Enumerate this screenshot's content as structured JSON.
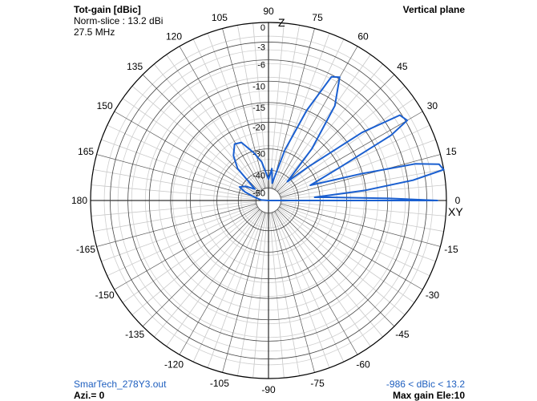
{
  "header": {
    "title": "Tot-gain [dBic]",
    "norm": "Norm-slice : 13.2 dBi",
    "freq": "27.5 MHz",
    "plane": "Vertical plane"
  },
  "footer": {
    "file": "SmarTech_278Y3.out",
    "azimuth": "Azi.= 0",
    "range": "-986 < dBic < 13.2",
    "max_gain": "Max gain Ele:10"
  },
  "chart_data": {
    "type": "polar",
    "angle_ticks": [
      0,
      15,
      30,
      45,
      60,
      75,
      90,
      105,
      120,
      135,
      150,
      165,
      180,
      -165,
      -150,
      -135,
      -120,
      -105,
      -90,
      -75,
      -60,
      -45,
      -30,
      -15
    ],
    "axis_labels": {
      "z": "Z",
      "xy": "XY"
    },
    "radial_scale_labels": [
      "0",
      "-3",
      "-6",
      "-10",
      "-15",
      "-20",
      "-30",
      "-40",
      "-50"
    ],
    "radial_scale_fractions": [
      1.0,
      0.89,
      0.79,
      0.67,
      0.55,
      0.44,
      0.29,
      0.17,
      0.07
    ],
    "pattern": {
      "color": "#1a5fd0",
      "points": [
        [
          0,
          0.95
        ],
        [
          1,
          0.68
        ],
        [
          3,
          0.34
        ],
        [
          4,
          0.26
        ],
        [
          6,
          0.55
        ],
        [
          8,
          0.82
        ],
        [
          10,
          1.0
        ],
        [
          12,
          0.98
        ],
        [
          14,
          0.85
        ],
        [
          16,
          0.55
        ],
        [
          20,
          0.25
        ],
        [
          25,
          0.45
        ],
        [
          28,
          0.78
        ],
        [
          30,
          0.9
        ],
        [
          33,
          0.88
        ],
        [
          36,
          0.65
        ],
        [
          40,
          0.3
        ],
        [
          45,
          0.15
        ],
        [
          50,
          0.38
        ],
        [
          55,
          0.65
        ],
        [
          60,
          0.8
        ],
        [
          63,
          0.78
        ],
        [
          67,
          0.55
        ],
        [
          72,
          0.3
        ],
        [
          78,
          0.1
        ],
        [
          84,
          0.18
        ],
        [
          90,
          0.12
        ],
        [
          100,
          0.22
        ],
        [
          107,
          0.28
        ],
        [
          115,
          0.36
        ],
        [
          121,
          0.37
        ],
        [
          128,
          0.32
        ],
        [
          134,
          0.25
        ],
        [
          140,
          0.1
        ],
        [
          148,
          0.15
        ],
        [
          155,
          0.18
        ],
        [
          160,
          0.14
        ],
        [
          164,
          0.1
        ],
        [
          170,
          0.06
        ],
        [
          176,
          0.04
        ],
        [
          180,
          0.0
        ]
      ]
    }
  }
}
